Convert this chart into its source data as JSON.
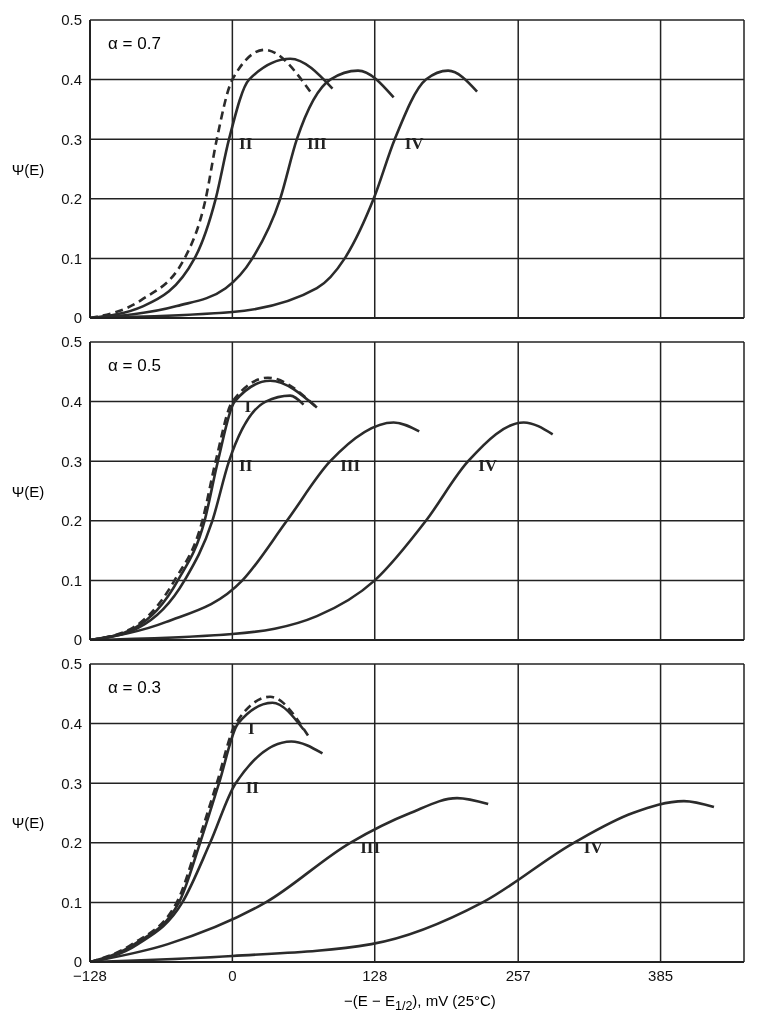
{
  "chart_data": [
    {
      "type": "line",
      "annotations": [
        "α = 0.7"
      ],
      "ylabel": "Ψ(E)",
      "xlim": [
        -128,
        460
      ],
      "ylim": [
        0,
        0.5
      ],
      "xticks": [
        0,
        128,
        257,
        385
      ],
      "yticks": [
        0,
        0.1,
        0.2,
        0.3,
        0.4,
        0.5
      ],
      "grid": true,
      "tick_labels": "y",
      "series": [
        {
          "color": "#2b2b2b",
          "line_style": "dashed",
          "x": [
            -128,
            -82,
            -43,
            -24,
            -14,
            0,
            29,
            70
          ],
          "values": [
            0,
            0.03,
            0.1,
            0.2,
            0.3,
            0.4,
            0.45,
            0.38
          ]
        },
        {
          "name": "II",
          "color": "#2b2b2b",
          "x": [
            -128,
            -80,
            -34,
            -15,
            -3,
            15,
            52,
            90
          ],
          "values": [
            0,
            0.02,
            0.1,
            0.2,
            0.3,
            0.4,
            0.435,
            0.385
          ]
        },
        {
          "name": "III",
          "color": "#2b2b2b",
          "x": [
            -128,
            -50,
            -6,
            18,
            43,
            58,
            88,
            113,
            145
          ],
          "values": [
            0,
            0.02,
            0.05,
            0.1,
            0.2,
            0.3,
            0.4,
            0.415,
            0.37
          ]
        },
        {
          "name": "IV",
          "color": "#2b2b2b",
          "x": [
            -128,
            0,
            76,
            101,
            127,
            146,
            174,
            194,
            220
          ],
          "values": [
            0,
            0.01,
            0.05,
            0.1,
            0.2,
            0.3,
            0.4,
            0.415,
            0.38
          ]
        }
      ]
    },
    {
      "type": "line",
      "annotations": [
        "α = 0.5"
      ],
      "ylabel": "Ψ(E)",
      "xlim": [
        -128,
        460
      ],
      "ylim": [
        0,
        0.5
      ],
      "xticks": [
        0,
        128,
        257,
        385
      ],
      "yticks": [
        0,
        0.1,
        0.2,
        0.3,
        0.4,
        0.5
      ],
      "grid": true,
      "tick_labels": "y",
      "series": [
        {
          "color": "#2b2b2b",
          "line_style": "dashed",
          "x": [
            -128,
            -90,
            -52,
            -27,
            -15,
            0,
            32,
            76
          ],
          "values": [
            0,
            0.02,
            0.1,
            0.2,
            0.3,
            0.4,
            0.44,
            0.39
          ]
        },
        {
          "name": "I",
          "color": "#2b2b2b",
          "x": [
            -128,
            -88,
            -49,
            -25,
            -13,
            2,
            34,
            76
          ],
          "values": [
            0,
            0.02,
            0.1,
            0.2,
            0.3,
            0.4,
            0.435,
            0.39
          ]
        },
        {
          "name": "II",
          "color": "#2b2b2b",
          "x": [
            -128,
            -85,
            -43,
            -18,
            -3,
            30,
            52,
            64
          ],
          "values": [
            0,
            0.02,
            0.1,
            0.2,
            0.3,
            0.4,
            0.41,
            0.395
          ]
        },
        {
          "name": "III",
          "color": "#2b2b2b",
          "x": [
            -128,
            -60,
            9,
            49,
            88,
            145,
            168
          ],
          "values": [
            0,
            0.03,
            0.1,
            0.2,
            0.3,
            0.365,
            0.35
          ]
        },
        {
          "name": "IV",
          "color": "#2b2b2b",
          "x": [
            -128,
            0,
            76,
            128,
            174,
            212,
            262,
            288
          ],
          "values": [
            0,
            0.01,
            0.04,
            0.1,
            0.2,
            0.3,
            0.365,
            0.345
          ]
        }
      ]
    },
    {
      "type": "line",
      "annotations": [
        "α = 0.3"
      ],
      "ylabel": "Ψ(E)",
      "xlabel": "−(E − E$_{1/2}$), mV (25°C)",
      "xlim": [
        -128,
        460
      ],
      "ylim": [
        0,
        0.5
      ],
      "xticks": [
        {
          "value": -128,
          "label": "−128"
        },
        0,
        128,
        257,
        385
      ],
      "yticks": [
        0,
        0.1,
        0.2,
        0.3,
        0.4,
        0.5
      ],
      "grid": true,
      "series": [
        {
          "color": "#2b2b2b",
          "line_style": "dashed",
          "x": [
            -128,
            -90,
            -50,
            -31,
            -14,
            3,
            34,
            68
          ],
          "values": [
            0,
            0.03,
            0.1,
            0.2,
            0.3,
            0.4,
            0.445,
            0.38
          ]
        },
        {
          "name": "I",
          "color": "#2b2b2b",
          "x": [
            -128,
            -88,
            -48,
            -29,
            -12,
            5,
            36,
            64
          ],
          "values": [
            0,
            0.03,
            0.1,
            0.2,
            0.3,
            0.4,
            0.435,
            0.39
          ]
        },
        {
          "name": "II",
          "color": "#2b2b2b",
          "x": [
            -128,
            -85,
            -45,
            -20,
            3,
            53,
            81
          ],
          "values": [
            0,
            0.03,
            0.1,
            0.2,
            0.3,
            0.37,
            0.35
          ]
        },
        {
          "name": "III",
          "color": "#2b2b2b",
          "x": [
            -128,
            -58,
            30,
            106,
            160,
            202,
            230
          ],
          "values": [
            0,
            0.03,
            0.1,
            0.2,
            0.25,
            0.275,
            0.265
          ]
        },
        {
          "name": "IV",
          "color": "#2b2b2b",
          "x": [
            -128,
            0,
            125,
            225,
            307,
            360,
            406,
            433
          ],
          "values": [
            0,
            0.01,
            0.03,
            0.1,
            0.2,
            0.25,
            0.27,
            0.26
          ]
        }
      ]
    }
  ]
}
